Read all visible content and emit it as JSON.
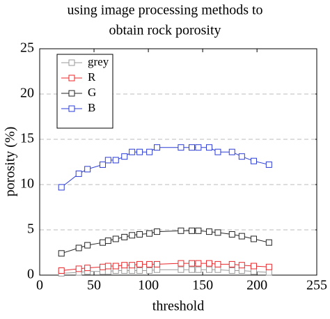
{
  "chart_data": {
    "type": "line",
    "title": [
      "using image processing methods to",
      "obtain rock porosity"
    ],
    "xlabel": "threshold",
    "ylabel": "porosity (%)",
    "x": [
      20,
      36,
      44,
      58,
      63,
      70,
      78,
      85,
      92,
      101,
      108,
      130,
      140,
      146,
      156,
      164,
      177,
      186,
      197,
      211
    ],
    "series": [
      {
        "name": "grey",
        "color": "#999999",
        "values": [
          0.2,
          0.3,
          0.4,
          0.4,
          0.4,
          0.5,
          0.5,
          0.5,
          0.5,
          0.5,
          0.6,
          0.6,
          0.6,
          0.6,
          0.6,
          0.6,
          0.5,
          0.5,
          0.4,
          0.3
        ]
      },
      {
        "name": "R",
        "color": "#e8262a",
        "values": [
          0.5,
          0.7,
          0.8,
          0.9,
          1.0,
          1.0,
          1.1,
          1.1,
          1.2,
          1.2,
          1.2,
          1.3,
          1.3,
          1.3,
          1.3,
          1.2,
          1.2,
          1.1,
          1.0,
          0.9
        ]
      },
      {
        "name": "G",
        "color": "#222222",
        "values": [
          2.4,
          3.0,
          3.3,
          3.6,
          3.8,
          4.0,
          4.2,
          4.4,
          4.5,
          4.6,
          4.8,
          4.9,
          4.9,
          4.9,
          4.8,
          4.7,
          4.5,
          4.3,
          4.0,
          3.6
        ]
      },
      {
        "name": "B",
        "color": "#2a3bd6",
        "values": [
          9.7,
          11.2,
          11.7,
          12.2,
          12.7,
          12.7,
          13.1,
          13.6,
          13.6,
          13.6,
          14.1,
          14.1,
          14.1,
          14.1,
          14.1,
          13.6,
          13.6,
          13.1,
          12.6,
          12.2
        ]
      }
    ],
    "xlim": [
      0,
      255
    ],
    "xticks": [
      0,
      50,
      100,
      150,
      200,
      255
    ],
    "ylim": [
      0,
      25
    ],
    "yticks": [
      0,
      5,
      10,
      15,
      20,
      25
    ],
    "grid": true,
    "legend": "top-left"
  }
}
